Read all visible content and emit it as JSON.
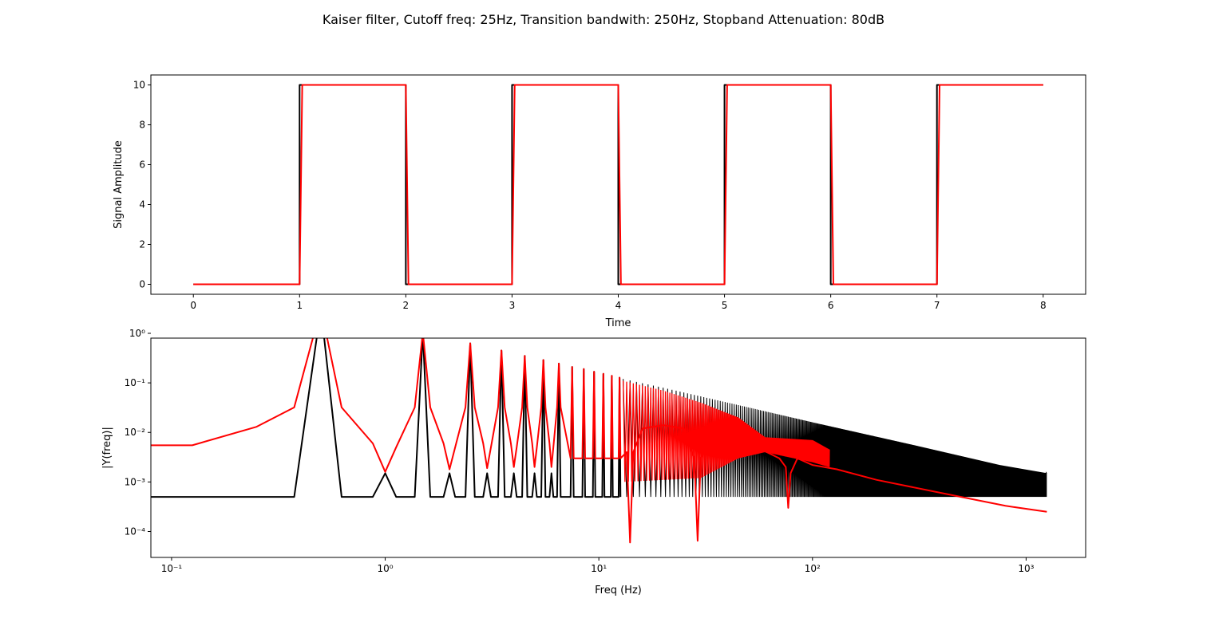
{
  "figure_title": "Kaiser filter, Cutoff freq: 25Hz, Transition bandwith: 250Hz, Stopband Attenuation: 80dB",
  "colors": {
    "original": "#000000",
    "filtered": "#ff0000"
  },
  "chart_data": [
    {
      "type": "line",
      "xlabel": "Time",
      "ylabel": "Signal Amplitude",
      "xlim": [
        -0.4,
        8.4
      ],
      "ylim": [
        -0.5,
        10.5
      ],
      "xticks": [
        0,
        1,
        2,
        3,
        4,
        5,
        6,
        7,
        8
      ],
      "xtick_labels": [
        "0",
        "1",
        "2",
        "3",
        "4",
        "5",
        "6",
        "7",
        "8"
      ],
      "yticks": [
        0,
        2,
        4,
        6,
        8,
        10
      ],
      "ytick_labels": [
        "0",
        "2",
        "4",
        "6",
        "8",
        "10"
      ],
      "grid": false,
      "series": [
        {
          "color": "#000000",
          "x": [
            0,
            1,
            1,
            2,
            2,
            3,
            3,
            4,
            4,
            5,
            5,
            6,
            6,
            7,
            7,
            8
          ],
          "y": [
            0,
            0,
            10,
            10,
            0,
            0,
            10,
            10,
            0,
            0,
            10,
            10,
            0,
            0,
            10,
            10
          ]
        },
        {
          "color": "#ff0000",
          "x": [
            0,
            1,
            1.025,
            2,
            2.025,
            3,
            3.025,
            4,
            4.025,
            5,
            5.025,
            6,
            6.025,
            7,
            7.025,
            8
          ],
          "y": [
            0,
            0,
            10,
            10,
            0,
            0,
            10,
            10,
            0,
            0,
            10,
            10,
            0,
            0,
            10,
            10
          ]
        }
      ]
    },
    {
      "type": "line",
      "xlabel": "Freq (Hz)",
      "ylabel": "|Y(freq)|",
      "xscale": "log",
      "yscale": "log",
      "xlim": [
        0.08,
        1900
      ],
      "ylim": [
        3e-05,
        0.8
      ],
      "xticks": [
        0.1,
        1,
        10,
        100,
        1000
      ],
      "xtick_labels": [
        "10⁻¹",
        "10⁰",
        "10¹",
        "10²",
        "10³"
      ],
      "yticks": [
        0.0001,
        0.001,
        0.01,
        0.1,
        1
      ],
      "ytick_labels": [
        "10⁻⁴",
        "10⁻³",
        "10⁻²",
        "10⁻¹",
        "10⁰"
      ],
      "grid": false,
      "series": [
        {
          "color": "#000000",
          "x": [
            0.08,
            0.375,
            0.5,
            0.625,
            0.875,
            1,
            1.125,
            1.375,
            1.5,
            1.625,
            1.875,
            2,
            2.125,
            2.375,
            2.5,
            2.625,
            2.875,
            3,
            3.125,
            3.375,
            3.5,
            3.625,
            3.875,
            4,
            4.125,
            4.375,
            4.5,
            4.625,
            4.875,
            5,
            5.125,
            5.375,
            5.5,
            5.625,
            5.875,
            6,
            6.125,
            6.375,
            6.5,
            6.625,
            7.375,
            7.5,
            7.625,
            8.375,
            8.5,
            8.625,
            9.375,
            9.5,
            9.625,
            10.375,
            10.5,
            10.625,
            11.375,
            11.5,
            11.625,
            12.375,
            12.5,
            12.625
          ],
          "y": [
            0.0005,
            0.0005,
            3.2,
            0.0005,
            0.0005,
            0.0015,
            0.0005,
            0.0005,
            1.05,
            0.0005,
            0.0005,
            0.0015,
            0.0005,
            0.0005,
            0.63,
            0.0005,
            0.0005,
            0.0015,
            0.0005,
            0.0005,
            0.45,
            0.0005,
            0.0005,
            0.0015,
            0.0005,
            0.0005,
            0.35,
            0.0005,
            0.0005,
            0.0015,
            0.0005,
            0.0005,
            0.29,
            0.0005,
            0.0005,
            0.0015,
            0.0005,
            0.0005,
            0.245,
            0.0005,
            0.0005,
            0.21,
            0.0005,
            0.0005,
            0.19,
            0.0005,
            0.0005,
            0.168,
            0.0005,
            0.0005,
            0.152,
            0.0005,
            0.0005,
            0.139,
            0.0005,
            0.0005,
            0.127,
            0.0005
          ],
          "dense_band": {
            "x_start": 13,
            "x_end": 1250,
            "upper_envelope": [
              [
                13,
                0.12
              ],
              [
                20,
                0.08
              ],
              [
                40,
                0.04
              ],
              [
                100,
                0.016
              ],
              [
                300,
                0.0055
              ],
              [
                750,
                0.0022
              ],
              [
                1250,
                0.0015
              ]
            ],
            "lower_level": 0.0005,
            "floor_band_from": 750,
            "floor_band_top": 0.0015
          }
        },
        {
          "color": "#ff0000",
          "x": [
            0.08,
            0.125,
            0.25,
            0.375,
            0.5,
            0.625,
            0.875,
            1,
            1.125,
            1.375,
            1.5,
            1.625,
            1.875,
            2,
            2.125,
            2.375,
            2.5,
            2.625,
            2.875,
            3,
            3.125,
            3.375,
            3.5,
            3.625,
            3.875,
            4,
            4.125,
            4.375,
            4.5,
            4.625,
            4.875,
            5,
            5.125,
            5.375,
            5.5,
            5.625,
            5.875,
            6,
            6.125,
            6.375,
            6.5,
            6.625,
            7.375,
            7.5,
            7.625,
            8.375,
            8.5,
            8.625,
            9.375,
            9.5,
            9.625,
            10.375,
            10.5,
            10.625,
            11.375,
            11.5,
            11.625,
            12.375,
            12.5,
            12.625,
            13.5,
            14,
            14.5,
            16,
            20,
            25,
            28,
            29,
            30,
            35,
            45,
            55,
            70,
            75,
            77,
            79,
            85,
            100,
            130,
            200,
            400,
            800,
            1250
          ],
          "y": [
            0.0055,
            0.0055,
            0.013,
            0.032,
            3.2,
            0.032,
            0.006,
            0.0016,
            0.005,
            0.032,
            1.05,
            0.032,
            0.006,
            0.0018,
            0.005,
            0.032,
            0.63,
            0.032,
            0.006,
            0.0019,
            0.005,
            0.032,
            0.45,
            0.032,
            0.006,
            0.002,
            0.005,
            0.032,
            0.35,
            0.032,
            0.006,
            0.002,
            0.005,
            0.032,
            0.29,
            0.032,
            0.006,
            0.002,
            0.005,
            0.032,
            0.245,
            0.032,
            0.003,
            0.21,
            0.003,
            0.003,
            0.19,
            0.003,
            0.003,
            0.168,
            0.003,
            0.003,
            0.152,
            0.003,
            0.003,
            0.139,
            0.003,
            0.003,
            0.127,
            0.003,
            0.004,
            6e-05,
            0.004,
            0.012,
            0.014,
            0.012,
            0.003,
            6.5e-05,
            0.003,
            0.01,
            0.008,
            0.005,
            0.003,
            0.002,
            0.0003,
            0.0015,
            0.003,
            0.0022,
            0.0018,
            0.0011,
            0.0006,
            0.00033,
            0.00025
          ],
          "dense_band": {
            "x_start": 13,
            "x_end": 120,
            "upper_envelope": [
              [
                13,
                0.11
              ],
              [
                20,
                0.07
              ],
              [
                30,
                0.04
              ],
              [
                45,
                0.02
              ],
              [
                60,
                0.008
              ],
              [
                100,
                0.007
              ],
              [
                120,
                0.0045
              ]
            ],
            "lower_envelope": [
              [
                13,
                0.001
              ],
              [
                20,
                0.0011
              ],
              [
                30,
                0.0012
              ],
              [
                45,
                0.003
              ],
              [
                60,
                0.004
              ],
              [
                100,
                0.0025
              ],
              [
                120,
                0.002
              ]
            ]
          }
        }
      ]
    }
  ]
}
